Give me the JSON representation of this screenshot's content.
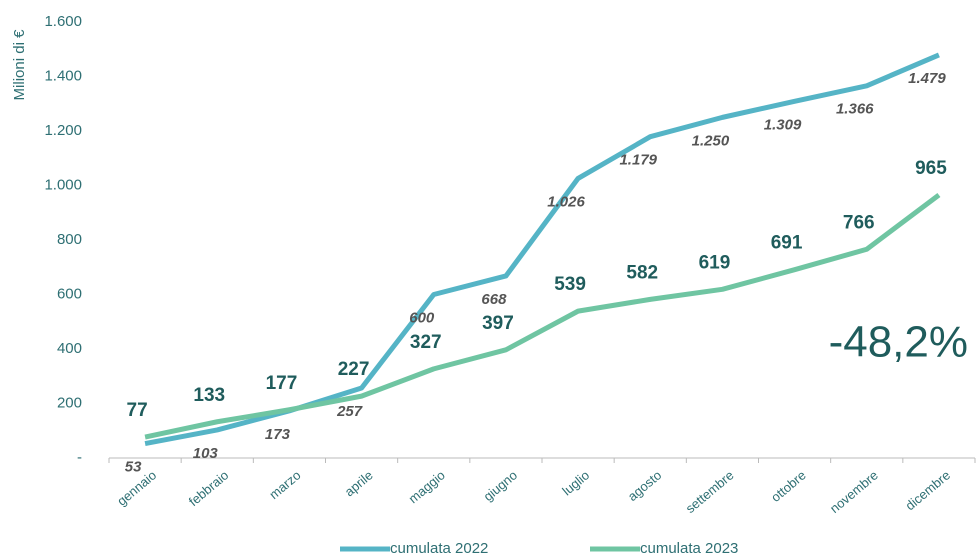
{
  "chart_data": {
    "type": "line",
    "y_label": "Milioni di €",
    "annotation": "-48,2%",
    "categories": [
      "gennaio",
      "febbraio",
      "marzo",
      "aprile",
      "maggio",
      "giugno",
      "luglio",
      "agosto",
      "settembre",
      "ottobre",
      "novembre",
      "dicembre"
    ],
    "series": [
      {
        "name": "cumulata 2022",
        "color": "#55b4c6",
        "values": [
          53,
          103,
          173,
          257,
          600,
          668,
          1026,
          1179,
          1250,
          1309,
          1366,
          1479
        ],
        "value_labels": [
          "53",
          "103",
          "173",
          "257",
          "600",
          "668",
          "1.026",
          "1.179",
          "1.250",
          "1.309",
          "1.366",
          "1.479"
        ]
      },
      {
        "name": "cumulata 2023",
        "color": "#6fc5a2",
        "values": [
          77,
          133,
          177,
          227,
          327,
          397,
          539,
          582,
          619,
          691,
          766,
          965
        ]
      }
    ],
    "ylim": [
      0,
      1600
    ],
    "yticks": [
      {
        "value": 0,
        "label": "-"
      },
      200,
      400,
      600,
      800,
      {
        "value": 1000,
        "label": "1.000"
      },
      {
        "value": 1200,
        "label": "1.200"
      },
      {
        "value": 1400,
        "label": "1.400"
      },
      {
        "value": 1600,
        "label": "1.600"
      }
    ],
    "grid": false
  }
}
